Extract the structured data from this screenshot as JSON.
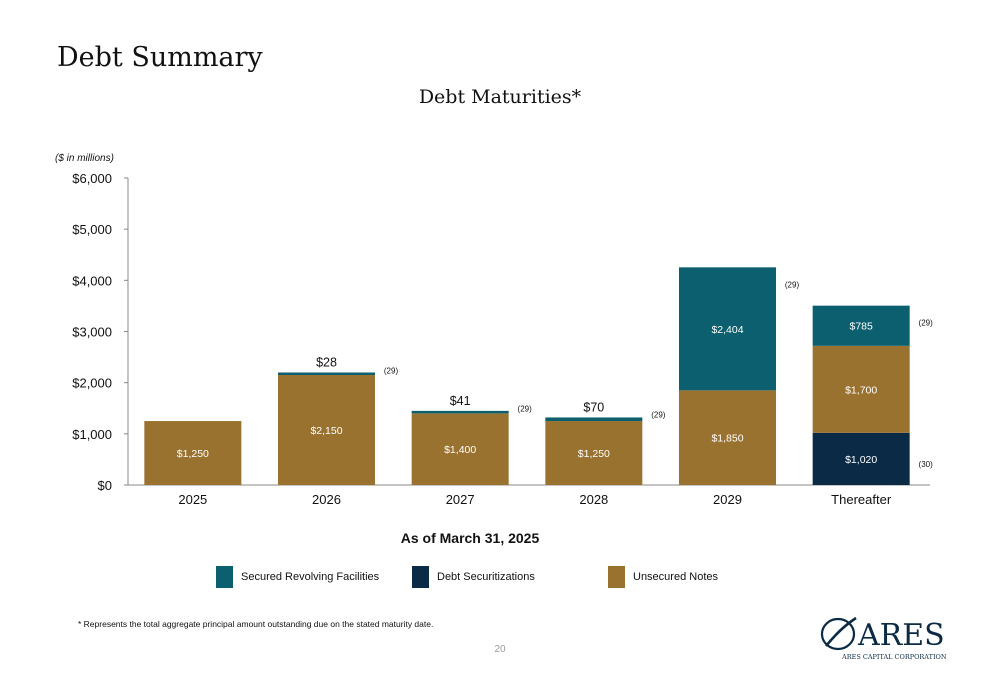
{
  "page": {
    "title": "Debt Summary",
    "footnote": "* Represents the total aggregate principal amount outstanding due on the stated maturity date.",
    "page_number": "20",
    "logo_text": "ARES",
    "logo_subtext": "ARES CAPITAL CORPORATION"
  },
  "colors": {
    "secured": "#0b5f6e",
    "securitizations": "#0a2a45",
    "unsecured": "#9a7230"
  },
  "chart_data": {
    "type": "bar",
    "stacked": true,
    "title": "Debt Maturities*",
    "units_label": "($ in millions)",
    "subtitle": "As of March 31, 2025",
    "categories": [
      "2025",
      "2026",
      "2027",
      "2028",
      "2029",
      "Thereafter"
    ],
    "ylim": [
      0,
      6000
    ],
    "yticks": [
      0,
      1000,
      2000,
      3000,
      4000,
      5000,
      6000
    ],
    "ytick_labels": [
      "$0",
      "$1,000",
      "$2,000",
      "$3,000",
      "$4,000",
      "$5,000",
      "$6,000"
    ],
    "series": [
      {
        "name": "Debt Securitizations",
        "color_key": "securitizations",
        "values": [
          0,
          0,
          0,
          0,
          0,
          1020
        ],
        "labels": [
          "",
          "",
          "",
          "",
          "",
          "$1,020"
        ]
      },
      {
        "name": "Unsecured Notes",
        "color_key": "unsecured",
        "values": [
          1250,
          2150,
          1400,
          1250,
          1850,
          1700
        ],
        "labels": [
          "$1,250",
          "$2,150",
          "$1,400",
          "$1,250",
          "$1,850",
          "$1,700"
        ]
      },
      {
        "name": "Secured Revolving Facilities",
        "color_key": "secured",
        "values": [
          0,
          28,
          41,
          70,
          2404,
          785
        ],
        "labels": [
          "",
          "$28",
          "$41",
          "$70",
          "$2,404",
          "$785"
        ]
      }
    ],
    "annotations": [
      {
        "category": "2026",
        "text": "(29)",
        "anchor": "top"
      },
      {
        "category": "2027",
        "text": "(29)",
        "anchor": "top"
      },
      {
        "category": "2028",
        "text": "(29)",
        "anchor": "top"
      },
      {
        "category": "2029",
        "text": "(29)",
        "anchor": "upper"
      },
      {
        "category": "Thereafter",
        "text": "(29)",
        "anchor": "upper"
      },
      {
        "category": "Thereafter",
        "text": "(30)",
        "anchor": "lower"
      }
    ],
    "legend": [
      {
        "label": "Secured Revolving Facilities",
        "color_key": "secured"
      },
      {
        "label": "Debt Securitizations",
        "color_key": "securitizations"
      },
      {
        "label": "Unsecured Notes",
        "color_key": "unsecured"
      }
    ],
    "legend_position": "bottom",
    "grid": false
  }
}
